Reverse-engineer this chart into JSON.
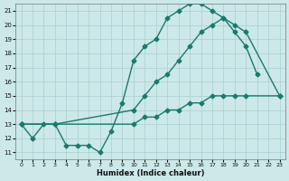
{
  "line1_x": [
    0,
    1,
    2,
    3,
    4,
    5,
    6,
    7,
    8,
    9,
    10,
    11,
    12,
    13,
    14,
    15,
    16,
    17,
    18,
    19,
    20,
    21
  ],
  "line1_y": [
    13,
    12,
    13,
    13,
    11.5,
    11.5,
    11.5,
    11,
    12.5,
    14.5,
    17.5,
    18.5,
    19,
    20.5,
    21,
    21.5,
    21.5,
    21,
    20.5,
    19.5,
    18.5,
    16.5
  ],
  "line2_x": [
    0,
    3,
    10,
    11,
    12,
    13,
    14,
    15,
    16,
    17,
    18,
    19,
    20,
    23
  ],
  "line2_y": [
    13,
    13,
    14,
    15,
    16,
    16.5,
    17.5,
    18.5,
    19.5,
    20,
    20.5,
    20,
    19.5,
    15
  ],
  "line3_x": [
    0,
    3,
    10,
    11,
    12,
    13,
    14,
    15,
    16,
    17,
    18,
    19,
    20,
    23
  ],
  "line3_y": [
    13,
    13,
    13,
    13.5,
    13.5,
    14,
    14,
    14.5,
    14.5,
    15,
    15,
    15,
    15,
    15
  ],
  "color": "#1a7a6e",
  "bg_color": "#cce8e8",
  "grid_color": "#aacfcf",
  "xlabel": "Humidex (Indice chaleur)",
  "xlim": [
    -0.5,
    23.5
  ],
  "ylim": [
    10.5,
    21.5
  ],
  "yticks": [
    11,
    12,
    13,
    14,
    15,
    16,
    17,
    18,
    19,
    20,
    21
  ],
  "xticks": [
    0,
    1,
    2,
    3,
    4,
    5,
    6,
    7,
    8,
    9,
    10,
    11,
    12,
    13,
    14,
    15,
    16,
    17,
    18,
    19,
    20,
    21,
    22,
    23
  ],
  "marker": "D",
  "markersize": 2.5,
  "linewidth": 1.0
}
